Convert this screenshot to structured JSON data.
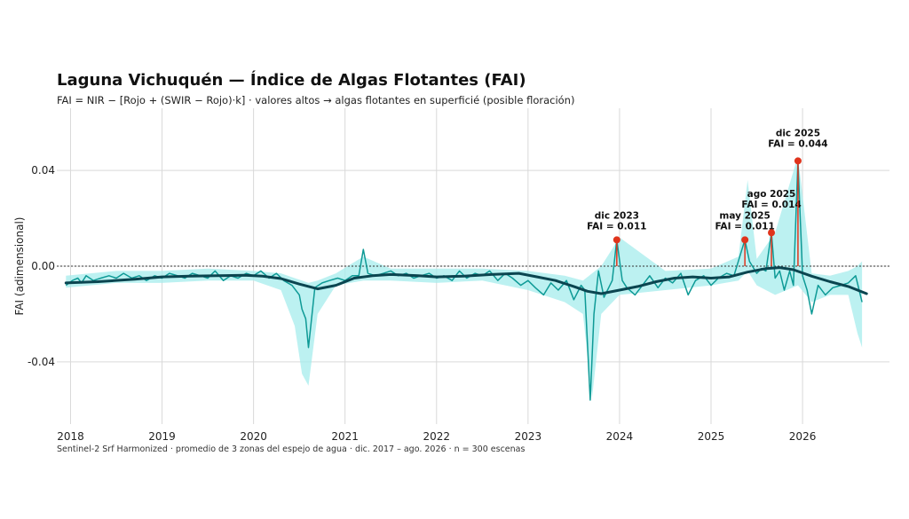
{
  "chart_data": {
    "type": "line",
    "title": "Laguna Vichuquén — Índice de Algas Flotantes (FAI)",
    "subtitle": "FAI = NIR − [Rojo + (SWIR − Rojo)·k]   ·   valores altos → algas flotantes en superficié (posible floración)",
    "caption": "Sentinel-2 Srf Harmonized   ·   promedio de 3 zonas del espejo de agua   ·   dic. 2017 – ago. 2026   ·   n = 300 escenas",
    "ylabel": "FAI (adimensional)",
    "xlabel": "",
    "ylim": [
      -0.066,
      0.066
    ],
    "xlim": [
      2017.85,
      2026.95
    ],
    "grid": true,
    "x_ticks": [
      2018,
      2019,
      2020,
      2021,
      2022,
      2023,
      2024,
      2025,
      2026
    ],
    "x_tick_labels": [
      "2018",
      "2019",
      "2020",
      "2021",
      "2022",
      "2023",
      "2024",
      "2025",
      "2026"
    ],
    "y_ticks": [
      -0.04,
      0.0,
      0.04
    ],
    "y_tick_labels": [
      "-0.04",
      "0.00",
      "0.04"
    ],
    "zero_line": {
      "value": 0.0,
      "style": "dotted"
    },
    "colors": {
      "series": "#0e9a96",
      "band": "#a6ecec",
      "trend": "#0b4550",
      "peak": "#e0341c",
      "grid": "#d9d9d9"
    },
    "series": [
      {
        "style": "thin-line",
        "x": [
          2017.95,
          2018.02,
          2018.08,
          2018.12,
          2018.17,
          2018.25,
          2018.33,
          2018.42,
          2018.5,
          2018.58,
          2018.67,
          2018.75,
          2018.83,
          2018.92,
          2019.0,
          2019.08,
          2019.17,
          2019.25,
          2019.33,
          2019.42,
          2019.5,
          2019.58,
          2019.67,
          2019.75,
          2019.83,
          2019.92,
          2020.0,
          2020.08,
          2020.17,
          2020.25,
          2020.33,
          2020.42,
          2020.5,
          2020.53,
          2020.57,
          2020.6,
          2020.67,
          2020.75,
          2020.83,
          2020.92,
          2021.0,
          2021.08,
          2021.15,
          2021.2,
          2021.25,
          2021.33,
          2021.42,
          2021.5,
          2021.58,
          2021.67,
          2021.75,
          2021.83,
          2021.92,
          2022.0,
          2022.08,
          2022.17,
          2022.25,
          2022.33,
          2022.42,
          2022.5,
          2022.58,
          2022.67,
          2022.75,
          2022.83,
          2022.92,
          2023.0,
          2023.08,
          2023.17,
          2023.25,
          2023.33,
          2023.42,
          2023.5,
          2023.58,
          2023.62,
          2023.68,
          2023.72,
          2023.77,
          2023.83,
          2023.92,
          2023.97,
          2024.03,
          2024.08,
          2024.17,
          2024.25,
          2024.33,
          2024.42,
          2024.5,
          2024.58,
          2024.67,
          2024.75,
          2024.83,
          2024.92,
          2025.0,
          2025.08,
          2025.17,
          2025.25,
          2025.37,
          2025.42,
          2025.5,
          2025.55,
          2025.6,
          2025.66,
          2025.7,
          2025.75,
          2025.8,
          2025.86,
          2025.9,
          2025.95,
          2026.0,
          2026.05,
          2026.1,
          2026.17,
          2026.25,
          2026.33,
          2026.42,
          2026.5,
          2026.58,
          2026.65
        ],
        "values": [
          -0.008,
          -0.006,
          -0.005,
          -0.007,
          -0.004,
          -0.006,
          -0.005,
          -0.004,
          -0.005,
          -0.003,
          -0.005,
          -0.004,
          -0.006,
          -0.004,
          -0.005,
          -0.003,
          -0.004,
          -0.005,
          -0.003,
          -0.004,
          -0.005,
          -0.002,
          -0.006,
          -0.004,
          -0.005,
          -0.003,
          -0.004,
          -0.002,
          -0.005,
          -0.003,
          -0.006,
          -0.008,
          -0.012,
          -0.018,
          -0.022,
          -0.034,
          -0.009,
          -0.007,
          -0.006,
          -0.005,
          -0.006,
          -0.004,
          -0.004,
          0.007,
          -0.003,
          -0.004,
          -0.003,
          -0.002,
          -0.004,
          -0.003,
          -0.005,
          -0.004,
          -0.003,
          -0.005,
          -0.004,
          -0.006,
          -0.002,
          -0.005,
          -0.003,
          -0.004,
          -0.002,
          -0.006,
          -0.003,
          -0.005,
          -0.008,
          -0.006,
          -0.009,
          -0.012,
          -0.007,
          -0.01,
          -0.006,
          -0.014,
          -0.008,
          -0.01,
          -0.056,
          -0.02,
          -0.002,
          -0.013,
          -0.006,
          0.011,
          -0.006,
          -0.009,
          -0.012,
          -0.008,
          -0.004,
          -0.009,
          -0.005,
          -0.007,
          -0.003,
          -0.012,
          -0.006,
          -0.004,
          -0.008,
          -0.005,
          -0.003,
          -0.004,
          0.011,
          0.002,
          -0.003,
          -0.001,
          -0.002,
          0.014,
          -0.005,
          -0.002,
          -0.01,
          -0.002,
          -0.008,
          0.044,
          -0.004,
          -0.01,
          -0.02,
          -0.008,
          -0.012,
          -0.009,
          -0.008,
          -0.007,
          -0.004,
          -0.015
        ]
      },
      {
        "style": "trend",
        "x": [
          2017.95,
          2018.3,
          2018.7,
          2019.0,
          2019.3,
          2019.6,
          2019.9,
          2020.1,
          2020.3,
          2020.5,
          2020.7,
          2020.9,
          2021.1,
          2021.3,
          2021.5,
          2021.8,
          2022.0,
          2022.3,
          2022.6,
          2022.9,
          2023.1,
          2023.3,
          2023.5,
          2023.65,
          2023.8,
          2024.0,
          2024.2,
          2024.4,
          2024.6,
          2024.8,
          2025.0,
          2025.2,
          2025.4,
          2025.6,
          2025.75,
          2025.9,
          2026.1,
          2026.3,
          2026.5,
          2026.7
        ],
        "values": [
          -0.007,
          -0.0065,
          -0.0055,
          -0.0045,
          -0.0042,
          -0.004,
          -0.0038,
          -0.0042,
          -0.0052,
          -0.0075,
          -0.0095,
          -0.008,
          -0.005,
          -0.004,
          -0.0035,
          -0.004,
          -0.0045,
          -0.0042,
          -0.0035,
          -0.003,
          -0.0045,
          -0.006,
          -0.0085,
          -0.0105,
          -0.0115,
          -0.01,
          -0.0085,
          -0.0065,
          -0.005,
          -0.0045,
          -0.005,
          -0.0045,
          -0.0025,
          -0.001,
          -0.0006,
          -0.0015,
          -0.0042,
          -0.0065,
          -0.0085,
          -0.0115
        ]
      }
    ],
    "band": {
      "x": [
        2017.95,
        2018.5,
        2019.0,
        2019.5,
        2020.0,
        2020.3,
        2020.45,
        2020.53,
        2020.6,
        2020.7,
        2020.9,
        2021.2,
        2021.5,
        2022.0,
        2022.5,
        2023.0,
        2023.4,
        2023.6,
        2023.7,
        2023.8,
        2024.0,
        2024.5,
        2025.0,
        2025.3,
        2025.4,
        2025.5,
        2025.7,
        2025.95,
        2026.1,
        2026.3,
        2026.5,
        2026.6,
        2026.65
      ],
      "low": [
        -0.009,
        -0.007,
        -0.007,
        -0.006,
        -0.006,
        -0.01,
        -0.025,
        -0.045,
        -0.05,
        -0.02,
        -0.008,
        -0.006,
        -0.006,
        -0.007,
        -0.006,
        -0.01,
        -0.015,
        -0.02,
        -0.055,
        -0.02,
        -0.012,
        -0.01,
        -0.008,
        -0.006,
        -0.002,
        -0.008,
        -0.012,
        -0.008,
        -0.015,
        -0.012,
        -0.012,
        -0.028,
        -0.034
      ],
      "high": [
        -0.004,
        -0.002,
        -0.002,
        -0.001,
        -0.002,
        -0.003,
        -0.005,
        -0.006,
        -0.007,
        -0.006,
        -0.003,
        0.004,
        -0.001,
        -0.001,
        -0.001,
        -0.002,
        -0.004,
        -0.006,
        -0.003,
        0.0,
        0.012,
        -0.002,
        -0.001,
        0.004,
        0.036,
        0.003,
        0.014,
        0.046,
        -0.003,
        -0.004,
        -0.002,
        0.0,
        0.002
      ]
    },
    "annotations": [
      {
        "x": 2023.97,
        "y": 0.011,
        "label_date": "dic 2023",
        "label_value": "FAI = 0.011"
      },
      {
        "x": 2025.37,
        "y": 0.011,
        "label_date": "may 2025",
        "label_value": "FAI = 0.011"
      },
      {
        "x": 2025.66,
        "y": 0.014,
        "label_date": "ago 2025",
        "label_value": "FAI = 0.014"
      },
      {
        "x": 2025.95,
        "y": 0.044,
        "label_date": "dic 2025",
        "label_value": "FAI = 0.044"
      }
    ]
  }
}
